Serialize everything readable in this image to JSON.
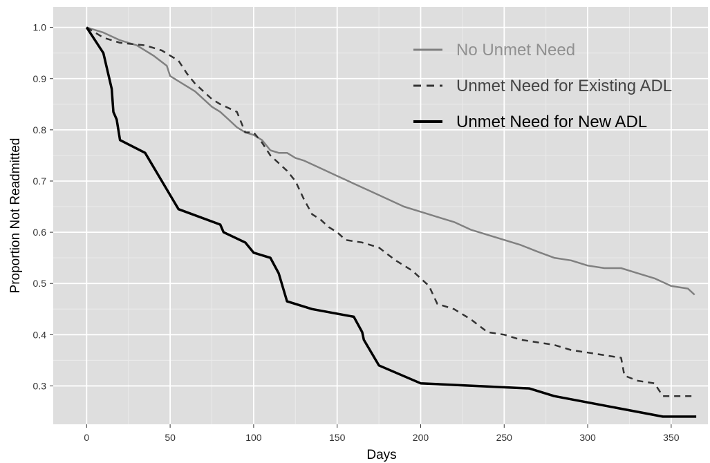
{
  "chart_data": {
    "type": "line",
    "title": "",
    "xlabel": "Days",
    "ylabel": "Proportion Not Readmitted",
    "xlim": [
      -20,
      372
    ],
    "ylim": [
      0.225,
      1.04
    ],
    "x_ticks": [
      0,
      50,
      100,
      150,
      200,
      250,
      300,
      350
    ],
    "y_ticks": [
      0.3,
      0.4,
      0.5,
      0.6,
      0.7,
      0.8,
      0.9,
      1.0
    ],
    "y_tick_labels": [
      "0.3",
      "0.4",
      "0.5",
      "0.6",
      "0.7",
      "0.8",
      "0.9",
      "1.0"
    ],
    "grid": true,
    "legend_position": "top-right",
    "colors": {
      "panel": "#dedede",
      "grid_major": "#ffffff",
      "grid_minor": "#ebebeb"
    },
    "series": [
      {
        "name": "No Unmet Need",
        "style": "solid",
        "color": "#808080",
        "points": [
          [
            0,
            1.0
          ],
          [
            10,
            0.99
          ],
          [
            20,
            0.975
          ],
          [
            30,
            0.965
          ],
          [
            40,
            0.945
          ],
          [
            48,
            0.925
          ],
          [
            50,
            0.905
          ],
          [
            55,
            0.895
          ],
          [
            60,
            0.885
          ],
          [
            65,
            0.875
          ],
          [
            70,
            0.86
          ],
          [
            75,
            0.845
          ],
          [
            80,
            0.835
          ],
          [
            85,
            0.82
          ],
          [
            90,
            0.805
          ],
          [
            95,
            0.795
          ],
          [
            100,
            0.79
          ],
          [
            105,
            0.78
          ],
          [
            110,
            0.76
          ],
          [
            115,
            0.755
          ],
          [
            120,
            0.755
          ],
          [
            125,
            0.745
          ],
          [
            130,
            0.74
          ],
          [
            140,
            0.725
          ],
          [
            150,
            0.71
          ],
          [
            160,
            0.695
          ],
          [
            170,
            0.68
          ],
          [
            180,
            0.665
          ],
          [
            190,
            0.65
          ],
          [
            200,
            0.64
          ],
          [
            210,
            0.63
          ],
          [
            220,
            0.62
          ],
          [
            230,
            0.605
          ],
          [
            240,
            0.595
          ],
          [
            250,
            0.585
          ],
          [
            260,
            0.575
          ],
          [
            270,
            0.562
          ],
          [
            280,
            0.55
          ],
          [
            290,
            0.545
          ],
          [
            300,
            0.535
          ],
          [
            310,
            0.53
          ],
          [
            320,
            0.53
          ],
          [
            330,
            0.52
          ],
          [
            340,
            0.51
          ],
          [
            350,
            0.495
          ],
          [
            360,
            0.49
          ],
          [
            364,
            0.478
          ]
        ]
      },
      {
        "name": "Unmet Need for Existing ADL",
        "style": "dashed",
        "color": "#333333",
        "points": [
          [
            0,
            1.0
          ],
          [
            10,
            0.98
          ],
          [
            20,
            0.97
          ],
          [
            35,
            0.965
          ],
          [
            45,
            0.955
          ],
          [
            50,
            0.945
          ],
          [
            55,
            0.935
          ],
          [
            60,
            0.91
          ],
          [
            65,
            0.89
          ],
          [
            75,
            0.86
          ],
          [
            80,
            0.85
          ],
          [
            90,
            0.835
          ],
          [
            95,
            0.795
          ],
          [
            100,
            0.795
          ],
          [
            105,
            0.775
          ],
          [
            110,
            0.75
          ],
          [
            115,
            0.735
          ],
          [
            120,
            0.72
          ],
          [
            125,
            0.7
          ],
          [
            130,
            0.665
          ],
          [
            135,
            0.635
          ],
          [
            140,
            0.625
          ],
          [
            145,
            0.61
          ],
          [
            150,
            0.6
          ],
          [
            155,
            0.585
          ],
          [
            165,
            0.58
          ],
          [
            175,
            0.57
          ],
          [
            185,
            0.545
          ],
          [
            195,
            0.525
          ],
          [
            205,
            0.495
          ],
          [
            210,
            0.46
          ],
          [
            220,
            0.45
          ],
          [
            230,
            0.43
          ],
          [
            240,
            0.405
          ],
          [
            250,
            0.4
          ],
          [
            260,
            0.39
          ],
          [
            280,
            0.38
          ],
          [
            290,
            0.37
          ],
          [
            300,
            0.365
          ],
          [
            310,
            0.36
          ],
          [
            320,
            0.355
          ],
          [
            322,
            0.32
          ],
          [
            330,
            0.31
          ],
          [
            340,
            0.305
          ],
          [
            345,
            0.28
          ],
          [
            365,
            0.28
          ]
        ]
      },
      {
        "name": "Unmet Need for New ADL",
        "style": "solid",
        "color": "#000000",
        "points": [
          [
            0,
            1.0
          ],
          [
            10,
            0.95
          ],
          [
            15,
            0.88
          ],
          [
            16,
            0.835
          ],
          [
            18,
            0.82
          ],
          [
            20,
            0.78
          ],
          [
            35,
            0.755
          ],
          [
            55,
            0.645
          ],
          [
            80,
            0.615
          ],
          [
            82,
            0.6
          ],
          [
            95,
            0.58
          ],
          [
            100,
            0.56
          ],
          [
            110,
            0.55
          ],
          [
            115,
            0.52
          ],
          [
            120,
            0.465
          ],
          [
            135,
            0.45
          ],
          [
            160,
            0.435
          ],
          [
            165,
            0.405
          ],
          [
            166,
            0.39
          ],
          [
            175,
            0.34
          ],
          [
            200,
            0.305
          ],
          [
            265,
            0.295
          ],
          [
            280,
            0.28
          ],
          [
            345,
            0.24
          ],
          [
            365,
            0.24
          ]
        ]
      }
    ]
  }
}
